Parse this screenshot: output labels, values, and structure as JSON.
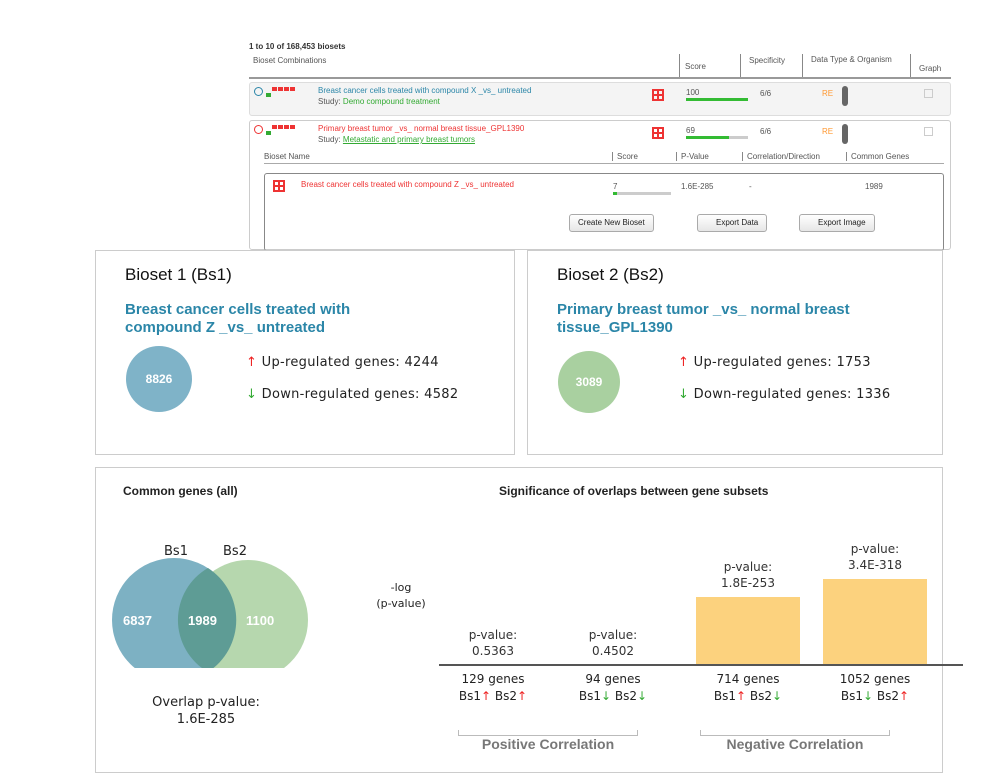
{
  "results": {
    "count_text": "1 to 10 of 168,453 biosets",
    "columns": [
      "Bioset Combinations",
      "Score",
      "Specificity",
      "Data Type & Organism",
      "Graph"
    ],
    "rows": [
      {
        "name": "Breast cancer cells treated with compound X _vs_ untreated",
        "study_label": "Study:",
        "study": "Demo compound treatment",
        "score": "100",
        "score_pct": 100,
        "specificity": "6/6",
        "data_type": "RE",
        "color": "#2b86a8"
      },
      {
        "name": "Primary breast tumor _vs_ normal breast tissue_GPL1390",
        "study_label": "Study:",
        "study": "Metastatic and primary breast tumors",
        "score": "69",
        "score_pct": 69,
        "specificity": "6/6",
        "data_type": "RE",
        "color": "#e33"
      }
    ],
    "sub_columns": [
      "Bioset Name",
      "Score",
      "P-Value",
      "Correlation/Direction",
      "Common Genes"
    ],
    "sub_row": {
      "name": "Breast cancer cells treated with compound Z _vs_ untreated",
      "score": "7",
      "score_pct": 7,
      "p_value": "1.6E-285",
      "direction": "-",
      "common": "1989"
    },
    "buttons": {
      "create": "Create New Bioset",
      "export_data": "Export Data",
      "export_image": "Export Image"
    }
  },
  "bioset1": {
    "title": "Bioset 1 (Bs1)",
    "name": "Breast cancer cells treated with compound Z _vs_ untreated",
    "total": "8826",
    "up_label": "Up-regulated genes:",
    "up": "4244",
    "down_label": "Down-regulated genes:",
    "down": "4582",
    "color": "#7fb3c8"
  },
  "bioset2": {
    "title": "Bioset 2 (Bs2)",
    "name": "Primary breast tumor _vs_ normal breast tissue_GPL1390",
    "total": "3089",
    "up_label": "Up-regulated genes:",
    "up": "1753",
    "down_label": "Down-regulated genes:",
    "down": "1336",
    "color": "#a9d0a0"
  },
  "venn": {
    "title": "Common genes  (all)",
    "bs1_label": "Bs1",
    "bs2_label": "Bs2",
    "only1": "6837",
    "common": "1989",
    "only2": "1100",
    "overlap_label": "Overlap p-value:",
    "overlap_p": "1.6E-285"
  },
  "chart_data": {
    "type": "bar",
    "title": "Significance of overlaps between gene subsets",
    "ylabel": "-log\n(p-value)",
    "categories": [
      "129 genes",
      "94 genes",
      "714 genes",
      "1052 genes"
    ],
    "directions": [
      [
        "Bs1",
        "up",
        "Bs2",
        "up"
      ],
      [
        "Bs1",
        "down",
        "Bs2",
        "down"
      ],
      [
        "Bs1",
        "up",
        "Bs2",
        "down"
      ],
      [
        "Bs1",
        "down",
        "Bs2",
        "up"
      ]
    ],
    "p_label": "p-value:",
    "p_values": [
      "0.5363",
      "0.4502",
      "1.8E-253",
      "3.4E-318"
    ],
    "values": [
      0.27,
      0.35,
      252.7,
      317.5
    ],
    "groups": [
      "Positive Correlation",
      "Negative Correlation"
    ],
    "bar_color": "#fcd27e"
  }
}
